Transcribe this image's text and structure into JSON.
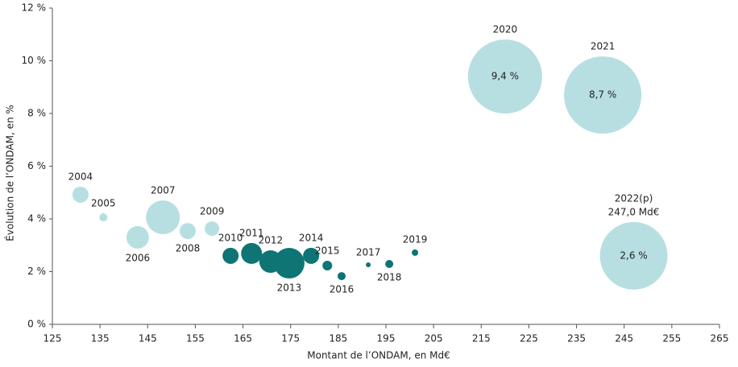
{
  "chart_data": {
    "type": "bubble",
    "xlabel": "Montant de l’ONDAM, en Md€",
    "ylabel": "Évolution de l’ONDAM, en %",
    "labels": [
      "2004",
      "2005",
      "2006",
      "2007",
      "2008",
      "2009",
      "2010",
      "2011",
      "2012",
      "2013",
      "2014",
      "2015",
      "2016",
      "2017",
      "2018",
      "2019",
      "2020",
      "2021",
      "2022(p)"
    ],
    "x": [
      130.9,
      135.7,
      142.9,
      148.2,
      153.4,
      158.5,
      162.4,
      166.8,
      170.8,
      174.7,
      179.3,
      182.7,
      185.7,
      191.3,
      195.7,
      201.1,
      220.0,
      240.5,
      247.0
    ],
    "values": [
      4.92,
      4.06,
      3.3,
      4.06,
      3.54,
      3.63,
      2.6,
      2.69,
      2.38,
      2.32,
      2.6,
      2.23,
      1.83,
      2.26,
      2.29,
      2.72,
      9.4,
      8.7,
      2.6
    ],
    "value_labels": [
      null,
      null,
      null,
      null,
      null,
      null,
      null,
      null,
      null,
      null,
      null,
      null,
      null,
      null,
      null,
      null,
      "9,4 %",
      "8,7 %",
      "2,6 %"
    ],
    "x_value_labels": [
      null,
      null,
      null,
      null,
      null,
      null,
      null,
      null,
      null,
      null,
      null,
      null,
      null,
      null,
      null,
      null,
      null,
      null,
      "247,0 Md€"
    ],
    "sizes": [
      10,
      5,
      14,
      21,
      10,
      9,
      10,
      13,
      14,
      19,
      10,
      6,
      5,
      3,
      5,
      4,
      46,
      48,
      42
    ],
    "colors": [
      "#b7dfe1",
      "#b7dfe1",
      "#b7dfe1",
      "#b7dfe1",
      "#b7dfe1",
      "#b7dfe1",
      "#0e7474",
      "#0e7474",
      "#0e7474",
      "#0e7474",
      "#0e7474",
      "#0e7474",
      "#0e7474",
      "#0e7474",
      "#0e7474",
      "#0e7474",
      "#b7dfe1",
      "#b7dfe1",
      "#b7dfe1"
    ],
    "xlim": [
      125,
      265
    ],
    "xticks": [
      125,
      135,
      145,
      155,
      165,
      175,
      185,
      195,
      205,
      215,
      225,
      235,
      245,
      255,
      265
    ],
    "ylim": [
      0,
      12
    ],
    "yticks": [
      {
        "value": 0,
        "label": "0 %"
      },
      {
        "value": 2,
        "label": "2 %"
      },
      {
        "value": 4,
        "label": "4 %"
      },
      {
        "value": 6,
        "label": "6 %"
      },
      {
        "value": 8,
        "label": "8 %"
      },
      {
        "value": 10,
        "label": "10 %"
      },
      {
        "value": 12,
        "label": "12 %"
      }
    ]
  }
}
